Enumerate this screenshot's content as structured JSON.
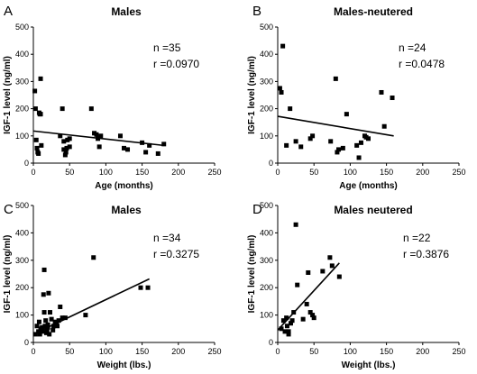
{
  "chart_data": [
    {
      "panel": "A",
      "type": "scatter",
      "title": "Males",
      "xlabel": "Age (months)",
      "ylabel": "IGF-1 level (ng/ml)",
      "xlim": [
        0,
        250
      ],
      "ylim": [
        0,
        500
      ],
      "xticks": [
        0,
        50,
        100,
        150,
        200,
        250
      ],
      "yticks": [
        0,
        100,
        200,
        300,
        400,
        500
      ],
      "stats": [
        "n =35",
        "r =0.0970"
      ],
      "x": [
        2,
        3,
        4,
        5,
        6,
        7,
        8,
        9,
        10,
        10,
        11,
        37,
        40,
        42,
        42,
        44,
        45,
        46,
        47,
        50,
        50,
        80,
        84,
        87,
        89,
        91,
        93,
        120,
        125,
        130,
        150,
        155,
        160,
        172,
        180
      ],
      "y": [
        265,
        200,
        85,
        55,
        40,
        35,
        185,
        180,
        180,
        310,
        65,
        100,
        200,
        80,
        50,
        30,
        40,
        55,
        85,
        90,
        60,
        200,
        110,
        105,
        90,
        60,
        100,
        100,
        55,
        50,
        75,
        40,
        65,
        35,
        70
      ],
      "fit": {
        "x": [
          0,
          180
        ],
        "y": [
          118,
          65
        ]
      }
    },
    {
      "panel": "B",
      "type": "scatter",
      "title": "Males-neutered",
      "xlabel": "Age (months)",
      "ylabel": "IGF-1 level (ng/ml)",
      "xlim": [
        0,
        250
      ],
      "ylim": [
        0,
        500
      ],
      "xticks": [
        0,
        50,
        100,
        150,
        200,
        250
      ],
      "yticks": [
        0,
        100,
        200,
        300,
        400,
        500
      ],
      "stats": [
        "n =24",
        "r =0.0478"
      ],
      "x": [
        3,
        5,
        7,
        12,
        17,
        25,
        32,
        45,
        48,
        73,
        80,
        82,
        84,
        90,
        95,
        109,
        112,
        115,
        120,
        122,
        125,
        143,
        147,
        158
      ],
      "y": [
        275,
        260,
        430,
        65,
        200,
        80,
        60,
        90,
        100,
        80,
        310,
        40,
        50,
        55,
        180,
        65,
        20,
        75,
        100,
        95,
        90,
        260,
        135,
        240
      ],
      "fit": {
        "x": [
          0,
          160
        ],
        "y": [
          172,
          100
        ]
      }
    },
    {
      "panel": "C",
      "type": "scatter",
      "title": "Males",
      "xlabel": "Weight (lbs.)",
      "ylabel": "IGF-1 level (ng/ml)",
      "xlim": [
        0,
        250
      ],
      "ylim": [
        0,
        500
      ],
      "xticks": [
        0,
        50,
        100,
        150,
        200,
        250
      ],
      "yticks": [
        0,
        100,
        200,
        300,
        400,
        500
      ],
      "stats": [
        "n =34",
        "r =0.3275"
      ],
      "x": [
        3,
        5,
        7,
        8,
        9,
        10,
        12,
        13,
        14,
        15,
        15,
        16,
        17,
        18,
        19,
        20,
        20,
        21,
        22,
        23,
        25,
        27,
        28,
        30,
        32,
        33,
        35,
        37,
        40,
        44,
        72,
        83,
        148,
        158
      ],
      "y": [
        30,
        60,
        40,
        75,
        30,
        50,
        55,
        40,
        175,
        265,
        110,
        60,
        80,
        35,
        45,
        55,
        65,
        180,
        30,
        110,
        85,
        45,
        60,
        75,
        65,
        60,
        80,
        130,
        90,
        90,
        100,
        310,
        200,
        200
      ],
      "fit": {
        "x": [
          0,
          160
        ],
        "y": [
          30,
          232
        ]
      }
    },
    {
      "panel": "D",
      "type": "scatter",
      "title": "Males neutered",
      "xlabel": "Weight (lbs.)",
      "ylabel": "IGF-1 level (ng/ml)",
      "xlim": [
        0,
        250
      ],
      "ylim": [
        0,
        500
      ],
      "xticks": [
        0,
        50,
        100,
        150,
        200,
        250
      ],
      "yticks": [
        0,
        100,
        200,
        300,
        400,
        500
      ],
      "stats": [
        "n =22",
        "r =0.3876"
      ],
      "x": [
        5,
        8,
        10,
        12,
        13,
        15,
        15,
        18,
        20,
        22,
        25,
        27,
        35,
        40,
        42,
        45,
        48,
        50,
        62,
        72,
        75,
        85
      ],
      "y": [
        50,
        80,
        40,
        90,
        60,
        40,
        30,
        70,
        80,
        110,
        430,
        210,
        85,
        140,
        255,
        110,
        100,
        90,
        260,
        310,
        280,
        240
      ],
      "fit": {
        "x": [
          0,
          85
        ],
        "y": [
          45,
          290
        ]
      }
    }
  ]
}
